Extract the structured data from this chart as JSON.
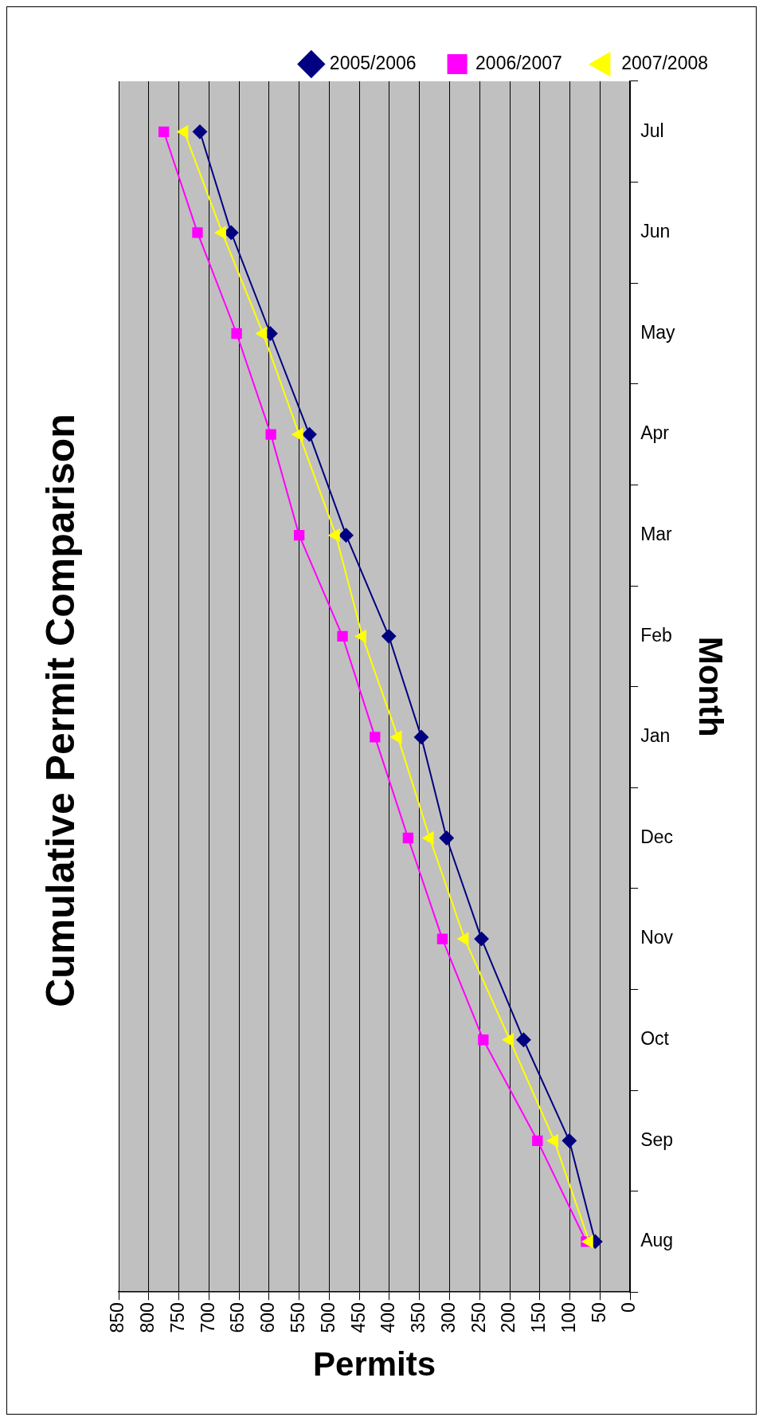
{
  "chart_data": {
    "type": "line",
    "title": "Cumulative Permit Comparison",
    "xlabel": "Permits",
    "ylabel": "Month",
    "orientation": "horizontal",
    "categories": [
      "Jul",
      "Jun",
      "May",
      "Apr",
      "Mar",
      "Feb",
      "Jan",
      "Dec",
      "Nov",
      "Oct",
      "Sep",
      "Aug"
    ],
    "series": [
      {
        "name": "2005/2006",
        "color": "#000080",
        "marker": "diamond",
        "values": [
          715,
          663,
          598,
          533,
          472,
          401,
          347,
          305,
          247,
          177,
          101,
          58
        ]
      },
      {
        "name": "2006/2007",
        "color": "#ff00ff",
        "marker": "square",
        "values": [
          775,
          719,
          654,
          597,
          550,
          478,
          424,
          369,
          312,
          244,
          154,
          73
        ]
      },
      {
        "name": "2007/2008",
        "color": "#ffff00",
        "marker": "triangle",
        "values": [
          741,
          678,
          610,
          550,
          489,
          445,
          386,
          333,
          275,
          200,
          126,
          68
        ]
      }
    ],
    "xlim": [
      850,
      0
    ],
    "xticks": [
      850,
      800,
      750,
      700,
      650,
      600,
      550,
      500,
      450,
      400,
      350,
      300,
      250,
      200,
      150,
      100,
      50,
      0
    ],
    "grid": "x",
    "legend": "top right",
    "line_style": "solid"
  }
}
